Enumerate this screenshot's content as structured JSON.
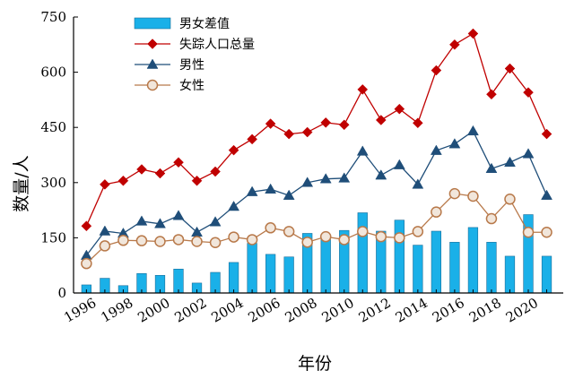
{
  "chart_data": {
    "type": "bar+line",
    "title": "",
    "xlabel": "年份",
    "ylabel": "数量/人",
    "ylim": [
      0,
      750
    ],
    "yticks": [
      0,
      150,
      300,
      450,
      600,
      750
    ],
    "xticks": [
      "1996",
      "1998",
      "2000",
      "2002",
      "2004",
      "2006",
      "2008",
      "2010",
      "2012",
      "2014",
      "2016",
      "2018",
      "2020"
    ],
    "x": [
      1996,
      1997,
      1998,
      1999,
      2000,
      2001,
      2002,
      2003,
      2004,
      2005,
      2006,
      2007,
      2008,
      2009,
      2010,
      2011,
      2012,
      2013,
      2014,
      2015,
      2016,
      2017,
      2018,
      2019,
      2020,
      2021
    ],
    "legend_position": "top-left",
    "grid": false,
    "series": [
      {
        "name": "男女差值",
        "type": "bar",
        "color": "#1ab0e8",
        "values": [
          22,
          40,
          20,
          53,
          48,
          65,
          27,
          56,
          83,
          135,
          105,
          98,
          162,
          158,
          170,
          218,
          168,
          198,
          130,
          168,
          138,
          178,
          138,
          100,
          213,
          100
        ]
      },
      {
        "name": "失踪人口总量",
        "type": "line",
        "marker": "diamond",
        "color": "#c00000",
        "values": [
          182,
          295,
          305,
          336,
          325,
          355,
          305,
          330,
          388,
          418,
          460,
          432,
          437,
          463,
          457,
          553,
          470,
          500,
          462,
          605,
          675,
          705,
          540,
          610,
          545,
          432
        ]
      },
      {
        "name": "男性",
        "type": "line",
        "marker": "triangle",
        "color": "#1f4e79",
        "values": [
          102,
          168,
          162,
          195,
          188,
          210,
          165,
          193,
          235,
          275,
          282,
          265,
          300,
          310,
          312,
          385,
          320,
          348,
          295,
          387,
          405,
          440,
          338,
          355,
          378,
          265
        ]
      },
      {
        "name": "女性",
        "type": "line",
        "marker": "circle",
        "color": "#b8794a",
        "values": [
          80,
          128,
          143,
          142,
          140,
          145,
          140,
          137,
          152,
          145,
          177,
          167,
          138,
          153,
          145,
          167,
          153,
          150,
          167,
          220,
          270,
          263,
          202,
          255,
          165,
          165
        ]
      }
    ]
  }
}
